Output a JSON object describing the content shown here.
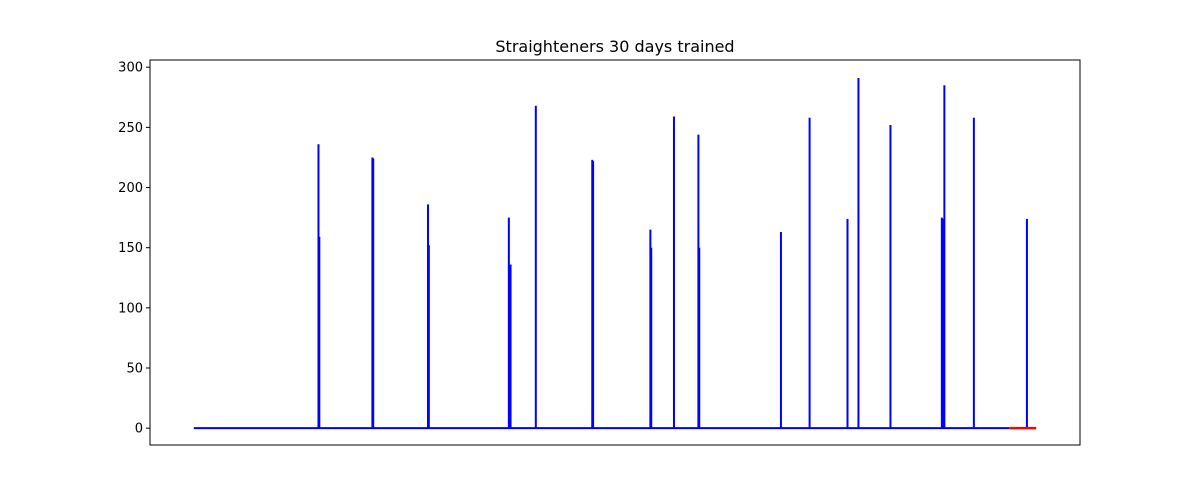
{
  "chart_data": {
    "type": "line",
    "title": "Straighteners 30 days trained",
    "xlabel": "",
    "ylabel": "",
    "ylim": [
      -14,
      306
    ],
    "yticks": [
      0,
      50,
      100,
      150,
      200,
      250,
      300
    ],
    "ytick_labels": [
      "0",
      "50",
      "100",
      "150",
      "200",
      "250",
      "300"
    ],
    "x_ticks_visible": false,
    "grid": false,
    "xlim": [
      -0.052,
      1.052
    ],
    "series": [
      {
        "color": "#0000ff",
        "baseline": 0,
        "x_range": [
          0,
          0.968
        ],
        "spikes": [
          {
            "x": 0.148,
            "value": 236
          },
          {
            "x": 0.149,
            "value": 159
          },
          {
            "x": 0.212,
            "value": 225
          },
          {
            "x": 0.213,
            "value": 224
          },
          {
            "x": 0.278,
            "value": 186
          },
          {
            "x": 0.279,
            "value": 152
          },
          {
            "x": 0.374,
            "value": 175
          },
          {
            "x": 0.376,
            "value": 136
          },
          {
            "x": 0.406,
            "value": 268
          },
          {
            "x": 0.473,
            "value": 223
          },
          {
            "x": 0.474,
            "value": 222
          },
          {
            "x": 0.542,
            "value": 165
          },
          {
            "x": 0.543,
            "value": 150
          },
          {
            "x": 0.57,
            "value": 259
          },
          {
            "x": 0.599,
            "value": 244
          },
          {
            "x": 0.6,
            "value": 150
          },
          {
            "x": 0.697,
            "value": 163
          },
          {
            "x": 0.731,
            "value": 258
          },
          {
            "x": 0.776,
            "value": 174
          },
          {
            "x": 0.789,
            "value": 291
          },
          {
            "x": 0.827,
            "value": 252
          },
          {
            "x": 0.888,
            "value": 175
          },
          {
            "x": 0.89,
            "value": 174
          },
          {
            "x": 0.891,
            "value": 285
          },
          {
            "x": 0.926,
            "value": 258
          },
          {
            "x": 0.989,
            "value": 174
          }
        ]
      },
      {
        "color": "#ff0000",
        "values": [
          {
            "x": 0.968,
            "value": 0
          },
          {
            "x": 1.0,
            "value": 0
          }
        ]
      }
    ]
  }
}
